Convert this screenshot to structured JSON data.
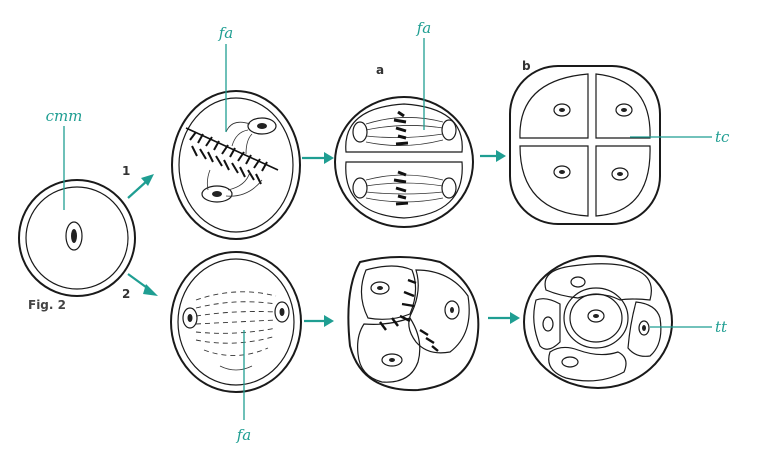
{
  "figure_label": "Fig. 2",
  "labels": {
    "cmm": "cmm",
    "fa_top": "fa",
    "fa_mid": "fa",
    "fa_bottom": "fa",
    "tc": "tc",
    "tt": "tt",
    "path1": "1",
    "path2": "2",
    "series_a": "a",
    "series_b": "b"
  },
  "colors": {
    "label_teal": "#1f9e92",
    "ink": "#1a1a1a"
  }
}
